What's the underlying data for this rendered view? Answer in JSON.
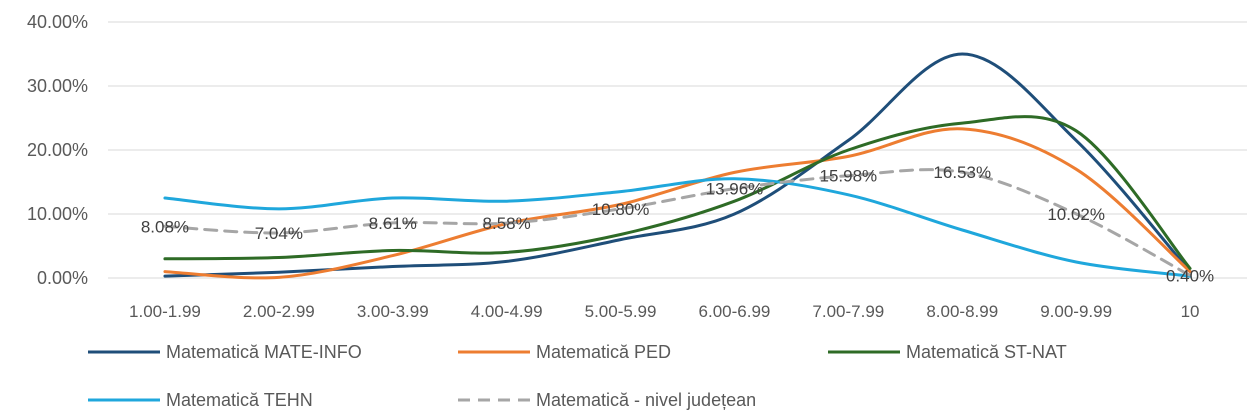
{
  "chart_data": {
    "type": "line",
    "categories": [
      "1.00-1.99",
      "2.00-2.99",
      "3.00-3.99",
      "4.00-4.99",
      "5.00-5.99",
      "6.00-6.99",
      "7.00-7.99",
      "8.00-8.99",
      "9.00-9.99",
      "10"
    ],
    "y_tick_labels": [
      "0.00%",
      "10.00%",
      "20.00%",
      "30.00%",
      "40.00%"
    ],
    "ylim": [
      0,
      40
    ],
    "grid": true,
    "legend_position": "bottom",
    "series": [
      {
        "name": "Matematică MATE-INFO",
        "color": "#1f4e79",
        "dash": false,
        "values": [
          0.3,
          0.9,
          1.8,
          2.6,
          6.0,
          10.0,
          21.5,
          35.0,
          21.5,
          1.0
        ]
      },
      {
        "name": "Matematică PED",
        "color": "#ed7d31",
        "dash": false,
        "values": [
          1.0,
          0.1,
          3.5,
          8.5,
          11.5,
          16.5,
          19.0,
          23.3,
          17.0,
          1.0
        ]
      },
      {
        "name": "Matematică ST-NAT",
        "color": "#2e6b26",
        "dash": false,
        "values": [
          3.0,
          3.2,
          4.3,
          4.0,
          6.8,
          12.0,
          20.0,
          24.2,
          23.0,
          1.5
        ]
      },
      {
        "name": "Matematică TEHN",
        "color": "#1fa7dc",
        "dash": false,
        "values": [
          12.5,
          10.8,
          12.5,
          12.0,
          13.5,
          15.5,
          13.0,
          7.5,
          2.5,
          0.3
        ]
      },
      {
        "name": "Matematică - nivel județean",
        "color": "#a6a6a6",
        "dash": true,
        "values": [
          8.08,
          7.04,
          8.61,
          8.58,
          10.8,
          13.96,
          15.98,
          16.53,
          10.02,
          0.4
        ],
        "data_labels": [
          "8.08%",
          "7.04%",
          "8.61%",
          "8.58%",
          "10.80%",
          "13.96%",
          "15.98%",
          "16.53%",
          "10.02%",
          "0.40%"
        ]
      }
    ]
  }
}
